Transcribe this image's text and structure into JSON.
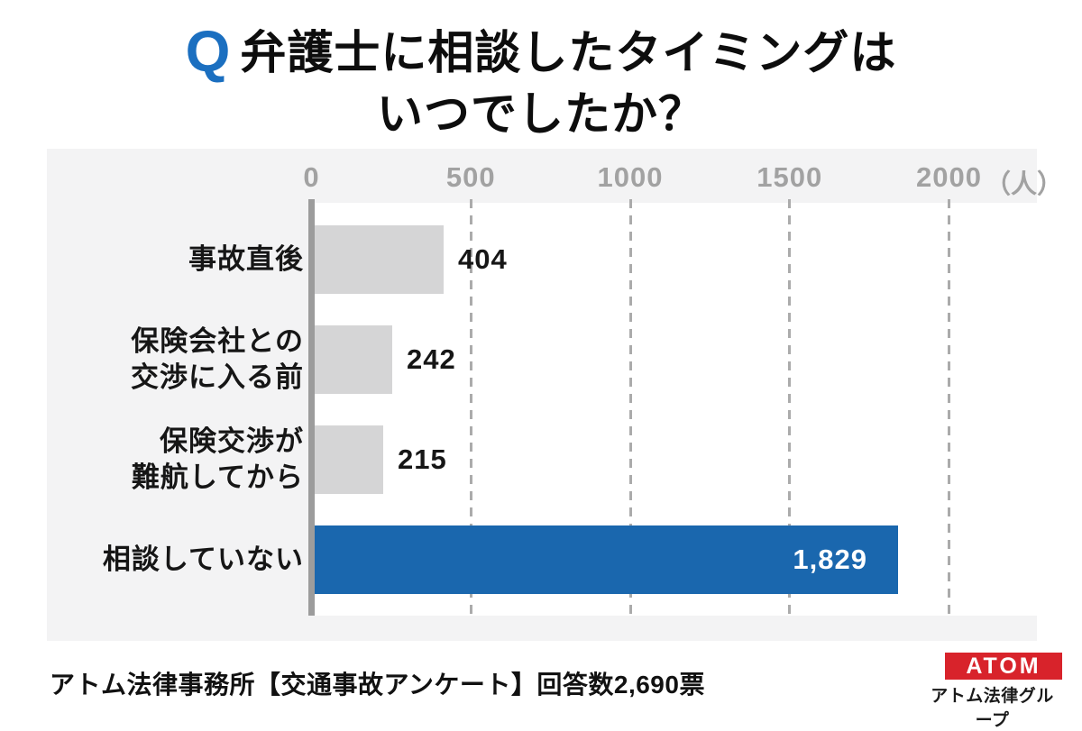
{
  "title": {
    "q_mark": "Q",
    "line1": "弁護士に相談したタイミングは",
    "line2": "いつでしたか？"
  },
  "chart_data": {
    "type": "bar",
    "orientation": "horizontal",
    "title": "弁護士に相談したタイミングはいつでしたか？",
    "unit_label": "（人）",
    "xlim": [
      0,
      2000
    ],
    "x_ticks": [
      "0",
      "500",
      "1000",
      "1500",
      "2000"
    ],
    "x_tick_values": [
      0,
      500,
      1000,
      1500,
      2000
    ],
    "gridline_values": [
      500,
      1000,
      1500,
      2000
    ],
    "grid": "dashed-vertical",
    "categories": [
      "事故直後",
      "保険会社との交渉に入る前",
      "保険交渉が難航してから",
      "相談していない"
    ],
    "values": [
      404,
      242,
      215,
      1829
    ],
    "rows": [
      {
        "label_lines": [
          "事故直後"
        ],
        "value": 404,
        "value_text": "404",
        "bar_color": "#d5d5d6",
        "value_inside": false
      },
      {
        "label_lines": [
          "保険会社との",
          "交渉に入る前"
        ],
        "value": 242,
        "value_text": "242",
        "bar_color": "#d5d5d6",
        "value_inside": false
      },
      {
        "label_lines": [
          "保険交渉が",
          "難航してから"
        ],
        "value": 215,
        "value_text": "215",
        "bar_color": "#d5d5d6",
        "value_inside": false
      },
      {
        "label_lines": [
          "相談していない"
        ],
        "value": 1829,
        "value_text": "1,829",
        "bar_color": "#1a67ae",
        "value_inside": true
      }
    ]
  },
  "footer": {
    "source_text": "アトム法律事務所【交通事故アンケート】回答数2,690票"
  },
  "logo": {
    "brand": "ATOM",
    "subtitle": "アトム法律グループ"
  },
  "colors": {
    "accent_blue": "#1a67ae",
    "q_blue": "#1b6fc0",
    "bar_gray": "#d5d5d6",
    "panel_gray": "#f3f3f4",
    "axis_gray": "#9c9c9c",
    "tick_text_gray": "#a2a2a2",
    "logo_red": "#d8232b"
  }
}
